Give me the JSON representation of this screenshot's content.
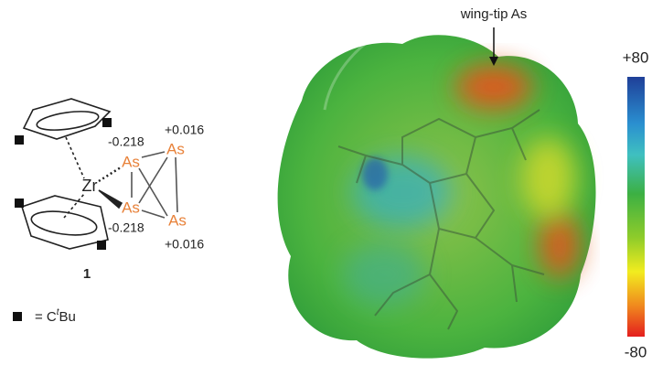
{
  "structure": {
    "metal": "Zr",
    "atoms": [
      "As",
      "As",
      "As",
      "As"
    ],
    "charges": [
      "-0.218",
      "+0.016",
      "-0.218",
      "+0.016"
    ],
    "compound_label": "1",
    "legend": {
      "prefix": "= C",
      "superscript": "t",
      "suffix": "Bu"
    }
  },
  "esp_map": {
    "annotation": "wing-tip As",
    "colorbar": {
      "max_label": "+80",
      "min_label": "-80"
    }
  }
}
